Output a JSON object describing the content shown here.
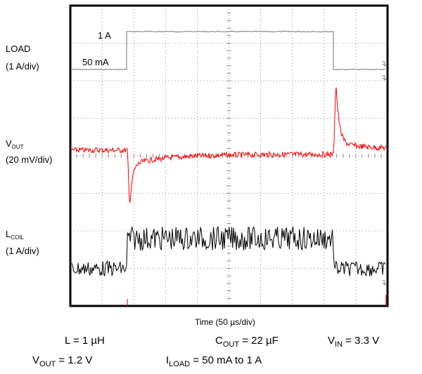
{
  "chart_data": {
    "type": "line",
    "title": "",
    "xlabel": "Time (50 µs/div)",
    "grid": true,
    "divisions": {
      "x": 10,
      "y": 8
    },
    "channels": [
      {
        "key": "load",
        "label_main": "LOAD",
        "label_sub": "",
        "scale": "(1 A/div)",
        "color": "#8a8a8a",
        "levels": [
          {
            "label": "1 A"
          },
          {
            "label": "50 mA"
          }
        ]
      },
      {
        "key": "vout",
        "label_main": "V",
        "label_sub": "OUT",
        "scale": "(20 mV/div)",
        "color": "#ff0000"
      },
      {
        "key": "lcoil",
        "label_main": "L",
        "label_sub": "COIL",
        "scale": "(1 A/div)",
        "color": "#000000"
      }
    ],
    "step_up_time_div": 1.8,
    "step_down_time_div": 8.3,
    "conditions": {
      "L": {
        "main": "L = 1 µH"
      },
      "COUT": {
        "main": "C",
        "sub": "OUT",
        "rest": " = 22 µF"
      },
      "VIN": {
        "main": "V",
        "sub": "IN",
        "rest": " = 3.3 V"
      },
      "VOUT": {
        "main": "V",
        "sub": "OUT",
        "rest": " = 1.2 V"
      },
      "ILOAD": {
        "main": "I",
        "sub": "LOAD",
        "rest": " = 50 mA to 1 A"
      }
    }
  }
}
